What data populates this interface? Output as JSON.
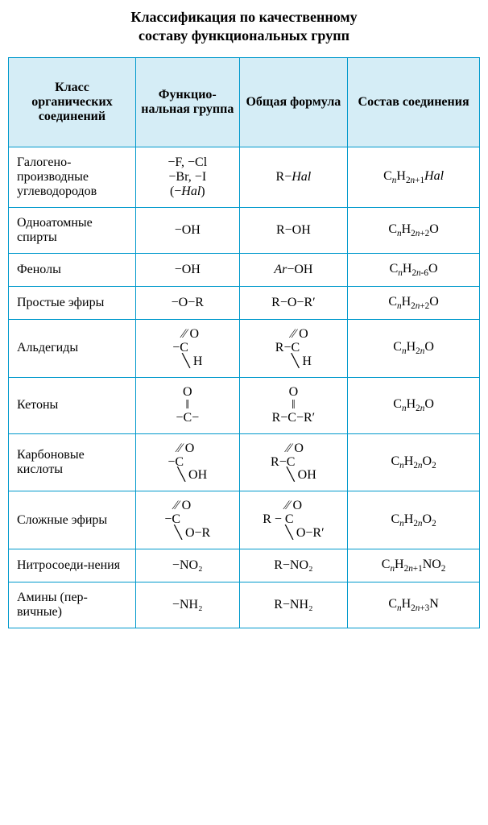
{
  "table": {
    "title_line1": "Классификация по качественному",
    "title_line2": "составу функциональных групп",
    "header_bg": "#d5edf6",
    "border_color": "#0099cc",
    "columns": [
      "Класс органических соединений",
      "Функцио-нальная группа",
      "Общая формула",
      "Состав соединения"
    ],
    "rows": [
      {
        "class_name": "Галогено-производные углеводородов",
        "group_plain": "−F, −Cl\n−Br, −I\n(−Hal)",
        "formula_plain": "R−Hal",
        "composition": {
          "template": "CnH_{2n+1}Hal"
        }
      },
      {
        "class_name": "Одноатомные спирты",
        "group_plain": "−OH",
        "formula_plain": "R−OH",
        "composition": {
          "template": "CnH_{2n+2}O"
        }
      },
      {
        "class_name": "Фенолы",
        "group_plain": "−OH",
        "formula_plain": "Ar−OH",
        "composition": {
          "template": "CnH_{2n-6}O"
        }
      },
      {
        "class_name": "Простые эфиры",
        "group_plain": "−O−R",
        "formula_plain": "R−O−R′",
        "composition": {
          "template": "CnH_{2n+2}O"
        }
      },
      {
        "class_name": "Альдегиды",
        "group_struct": {
          "upper": "   ⁄⁄ O",
          "lower": "−C",
          "lower2": "   ╲ H"
        },
        "formula_struct": {
          "upper": "     ⁄⁄ O",
          "lower": "R−C",
          "lower2": "     ╲ H"
        },
        "composition": {
          "template": "CnH_{2n}O"
        }
      },
      {
        "class_name": "Кетоны",
        "group_vstack": [
          "O",
          "‖",
          "−C−"
        ],
        "formula_vstack": [
          "O",
          "‖",
          "R−C−R′"
        ],
        "composition": {
          "template": "CnH_{2n}O"
        }
      },
      {
        "class_name": "Карбоновые кислоты",
        "group_struct": {
          "upper": "   ⁄⁄ O",
          "lower": "−C",
          "lower2": "   ╲ OH"
        },
        "formula_struct": {
          "upper": "     ⁄⁄ O",
          "lower": "R−C",
          "lower2": "     ╲ OH"
        },
        "composition": {
          "template": "CnH_{2n}O2"
        }
      },
      {
        "class_name": "Сложные эфиры",
        "group_struct": {
          "upper": "   ⁄⁄ O",
          "lower": "−C",
          "lower2": "   ╲ O−R"
        },
        "formula_struct": {
          "upper": "       ⁄⁄ O",
          "lower": "R − C",
          "lower2": "       ╲ O−R′"
        },
        "composition": {
          "template": "CnH_{2n}O2"
        }
      },
      {
        "class_name": "Нитросоеди-нения",
        "group_plain": "−NO₂",
        "formula_plain": "R−NO₂",
        "composition": {
          "template": "CnH_{2n+1}NO2"
        }
      },
      {
        "class_name": "Амины (пер-вичные)",
        "group_plain": "−NH₂",
        "formula_plain": "R−NH₂",
        "composition": {
          "template": "CnH_{2n+3}N"
        }
      }
    ]
  }
}
